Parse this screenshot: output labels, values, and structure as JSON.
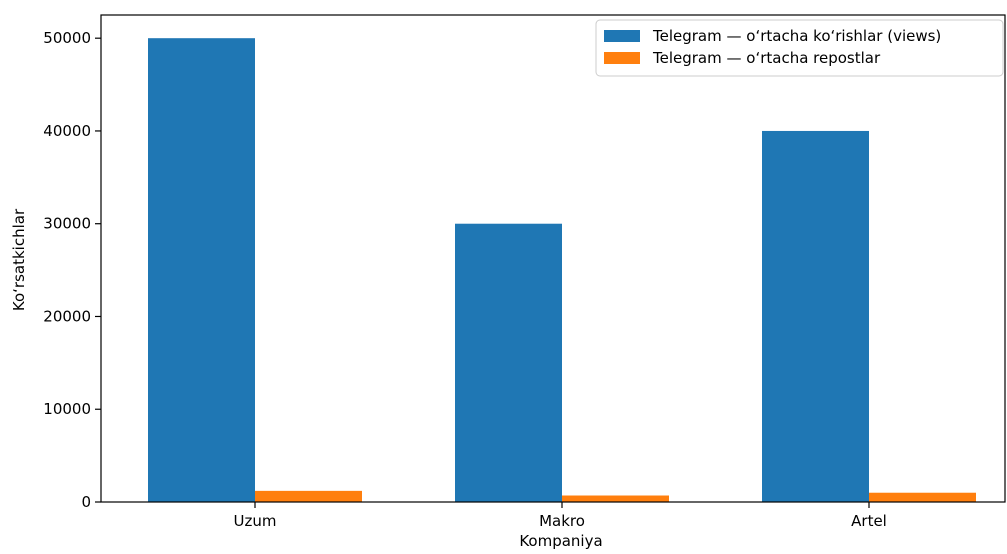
{
  "chart_data": {
    "type": "bar",
    "title": "",
    "xlabel": "Kompaniya",
    "ylabel": "Ko‘rsatkichlar",
    "categories": [
      "Uzum",
      "Makro",
      "Artel"
    ],
    "ylim": [
      0,
      52500
    ],
    "yticks": [
      0,
      10000,
      20000,
      30000,
      40000,
      50000
    ],
    "ytick_labels": [
      "0",
      "10000",
      "20000",
      "30000",
      "40000",
      "50000"
    ],
    "grid": false,
    "legend_position": "top-right",
    "series": [
      {
        "name": "Telegram — o‘rtacha ko‘rishlar (views)",
        "color": "#1f77b4",
        "values": [
          50000,
          30000,
          40000
        ]
      },
      {
        "name": "Telegram — o‘rtacha repostlar",
        "color": "#ff7f0e",
        "values": [
          1200,
          700,
          1000
        ]
      }
    ]
  }
}
